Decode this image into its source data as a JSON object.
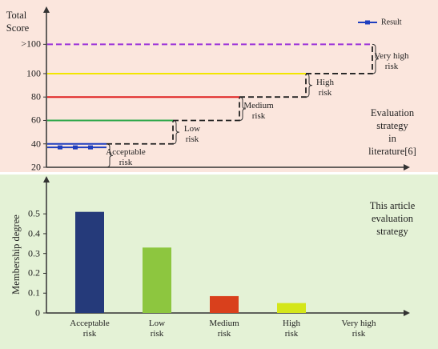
{
  "chart_data": [
    {
      "type": "threshold",
      "ylabel": "Total\nScore",
      "annotation": "Evaluation strategy\nin literature[6]",
      "ylim": [
        20,
        156
      ],
      "yticks": [
        20,
        40,
        60,
        80,
        100,
        {
          "value": 125,
          "label": ">100"
        }
      ],
      "levels": [
        {
          "label": "Acceptable\nrisk",
          "from": 20,
          "to": 40,
          "color": "#1f3fbf"
        },
        {
          "label": "Low\nrisk",
          "from": 40,
          "to": 60,
          "color": "#2ea84a"
        },
        {
          "label": "Medium\nrisk",
          "from": 60,
          "to": 80,
          "color": "#e02020"
        },
        {
          "label": "High\nrisk",
          "from": 80,
          "to": 100,
          "color": "#f2e600"
        },
        {
          "label": "Very high\nrisk",
          "from": 100,
          "to": 125,
          "color": "#9b30d9"
        }
      ],
      "series": [
        {
          "name": "Result",
          "color": "#1f3fbf",
          "values": [
            37
          ]
        }
      ]
    },
    {
      "type": "bar",
      "ylabel": "Membership degree",
      "annotation": "This article\nevaluation strategy",
      "categories": [
        "Acceptable\nrisk",
        "Low\nrisk",
        "Medium\nrisk",
        "High\nrisk",
        "Very high\nrisk"
      ],
      "values": [
        0.51,
        0.33,
        0.085,
        0.05,
        0
      ],
      "colors": [
        "#253a7a",
        "#8dc63f",
        "#d9401c",
        "#d4e619",
        "#999999"
      ],
      "ylim": [
        0,
        0.65
      ],
      "yticks": [
        0,
        0.1,
        0.2,
        0.3,
        0.4,
        0.5
      ]
    }
  ]
}
